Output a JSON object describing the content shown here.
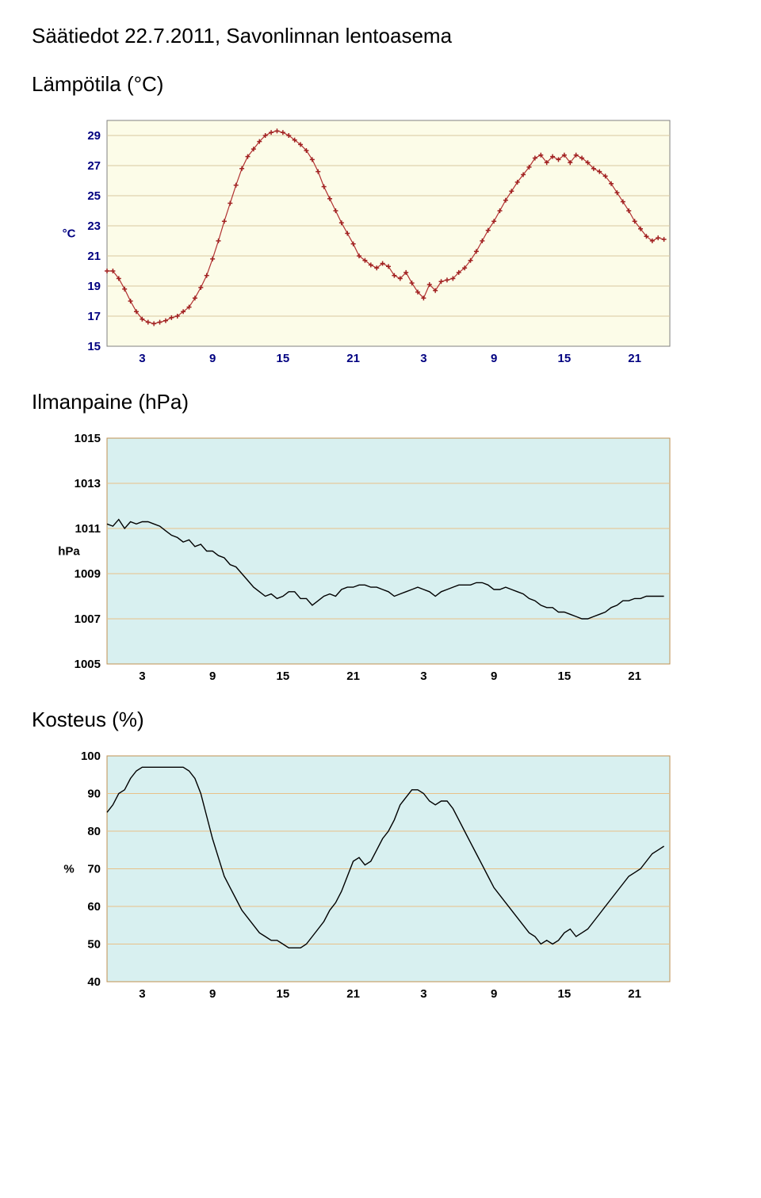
{
  "page_title": "Säätiedot 22.7.2011, Savonlinnan lentoasema",
  "charts": {
    "temperature": {
      "section_label": "Lämpötila (°C)",
      "type": "line",
      "background_color": "#fcfce8",
      "grid_color": "#d8c8a0",
      "border_color": "#808080",
      "line_color": "#b03030",
      "marker_color": "#a02020",
      "axis_font_size": 15,
      "axis_font_weight": "bold",
      "axis_color": "#000080",
      "y_axis_label": "°C",
      "ylim": [
        15,
        30
      ],
      "yticks": [
        15,
        17,
        19,
        21,
        23,
        25,
        27,
        29
      ],
      "xticks": [
        3,
        9,
        15,
        21,
        27,
        33,
        39,
        45
      ],
      "xtick_labels": [
        "3",
        "9",
        "15",
        "21",
        "3",
        "9",
        "15",
        "21"
      ],
      "xlim": [
        0,
        48
      ],
      "markers": true,
      "data": [
        [
          0,
          20
        ],
        [
          0.5,
          20
        ],
        [
          1,
          19.5
        ],
        [
          1.5,
          18.8
        ],
        [
          2,
          18
        ],
        [
          2.5,
          17.3
        ],
        [
          3,
          16.8
        ],
        [
          3.5,
          16.6
        ],
        [
          4,
          16.5
        ],
        [
          4.5,
          16.6
        ],
        [
          5,
          16.7
        ],
        [
          5.5,
          16.9
        ],
        [
          6,
          17
        ],
        [
          6.5,
          17.3
        ],
        [
          7,
          17.6
        ],
        [
          7.5,
          18.2
        ],
        [
          8,
          18.9
        ],
        [
          8.5,
          19.7
        ],
        [
          9,
          20.8
        ],
        [
          9.5,
          22
        ],
        [
          10,
          23.3
        ],
        [
          10.5,
          24.5
        ],
        [
          11,
          25.7
        ],
        [
          11.5,
          26.8
        ],
        [
          12,
          27.6
        ],
        [
          12.5,
          28.1
        ],
        [
          13,
          28.6
        ],
        [
          13.5,
          29
        ],
        [
          14,
          29.2
        ],
        [
          14.5,
          29.3
        ],
        [
          15,
          29.2
        ],
        [
          15.5,
          29
        ],
        [
          16,
          28.7
        ],
        [
          16.5,
          28.4
        ],
        [
          17,
          28
        ],
        [
          17.5,
          27.4
        ],
        [
          18,
          26.6
        ],
        [
          18.5,
          25.6
        ],
        [
          19,
          24.8
        ],
        [
          19.5,
          24
        ],
        [
          20,
          23.2
        ],
        [
          20.5,
          22.5
        ],
        [
          21,
          21.8
        ],
        [
          21.5,
          21
        ],
        [
          22,
          20.7
        ],
        [
          22.5,
          20.4
        ],
        [
          23,
          20.2
        ],
        [
          23.5,
          20.5
        ],
        [
          24,
          20.3
        ],
        [
          24.5,
          19.7
        ],
        [
          25,
          19.5
        ],
        [
          25.5,
          19.9
        ],
        [
          26,
          19.2
        ],
        [
          26.5,
          18.6
        ],
        [
          27,
          18.2
        ],
        [
          27.5,
          19.1
        ],
        [
          28,
          18.7
        ],
        [
          28.5,
          19.3
        ],
        [
          29,
          19.4
        ],
        [
          29.5,
          19.5
        ],
        [
          30,
          19.9
        ],
        [
          30.5,
          20.2
        ],
        [
          31,
          20.7
        ],
        [
          31.5,
          21.3
        ],
        [
          32,
          22
        ],
        [
          32.5,
          22.7
        ],
        [
          33,
          23.3
        ],
        [
          33.5,
          24
        ],
        [
          34,
          24.7
        ],
        [
          34.5,
          25.3
        ],
        [
          35,
          25.9
        ],
        [
          35.5,
          26.4
        ],
        [
          36,
          26.9
        ],
        [
          36.5,
          27.5
        ],
        [
          37,
          27.7
        ],
        [
          37.5,
          27.2
        ],
        [
          38,
          27.6
        ],
        [
          38.5,
          27.4
        ],
        [
          39,
          27.7
        ],
        [
          39.5,
          27.2
        ],
        [
          40,
          27.7
        ],
        [
          40.5,
          27.5
        ],
        [
          41,
          27.2
        ],
        [
          41.5,
          26.8
        ],
        [
          42,
          26.6
        ],
        [
          42.5,
          26.3
        ],
        [
          43,
          25.8
        ],
        [
          43.5,
          25.2
        ],
        [
          44,
          24.6
        ],
        [
          44.5,
          24
        ],
        [
          45,
          23.3
        ],
        [
          45.5,
          22.8
        ],
        [
          46,
          22.3
        ],
        [
          46.5,
          22
        ],
        [
          47,
          22.2
        ],
        [
          47.5,
          22.1
        ]
      ]
    },
    "pressure": {
      "section_label": "Ilmanpaine (hPa)",
      "type": "line",
      "background_color": "#d8f0f0",
      "grid_color": "#e8c088",
      "border_color": "#c09050",
      "line_color": "#000000",
      "axis_font_size": 15,
      "axis_font_weight": "bold",
      "axis_color": "#000000",
      "y_axis_label": "hPa",
      "ylim": [
        1005,
        1015
      ],
      "yticks": [
        1005,
        1007,
        1009,
        1011,
        1013,
        1015
      ],
      "xticks": [
        3,
        9,
        15,
        21,
        27,
        33,
        39,
        45
      ],
      "xtick_labels": [
        "3",
        "9",
        "15",
        "21",
        "3",
        "9",
        "15",
        "21"
      ],
      "xlim": [
        0,
        48
      ],
      "markers": false,
      "data": [
        [
          0,
          1011.2
        ],
        [
          0.5,
          1011.1
        ],
        [
          1,
          1011.4
        ],
        [
          1.5,
          1011.0
        ],
        [
          2,
          1011.3
        ],
        [
          2.5,
          1011.2
        ],
        [
          3,
          1011.3
        ],
        [
          3.5,
          1011.3
        ],
        [
          4,
          1011.2
        ],
        [
          4.5,
          1011.1
        ],
        [
          5,
          1010.9
        ],
        [
          5.5,
          1010.7
        ],
        [
          6,
          1010.6
        ],
        [
          6.5,
          1010.4
        ],
        [
          7,
          1010.5
        ],
        [
          7.5,
          1010.2
        ],
        [
          8,
          1010.3
        ],
        [
          8.5,
          1010.0
        ],
        [
          9,
          1010.0
        ],
        [
          9.5,
          1009.8
        ],
        [
          10,
          1009.7
        ],
        [
          10.5,
          1009.4
        ],
        [
          11,
          1009.3
        ],
        [
          11.5,
          1009.0
        ],
        [
          12,
          1008.7
        ],
        [
          12.5,
          1008.4
        ],
        [
          13,
          1008.2
        ],
        [
          13.5,
          1008.0
        ],
        [
          14,
          1008.1
        ],
        [
          14.5,
          1007.9
        ],
        [
          15,
          1008.0
        ],
        [
          15.5,
          1008.2
        ],
        [
          16,
          1008.2
        ],
        [
          16.5,
          1007.9
        ],
        [
          17,
          1007.9
        ],
        [
          17.5,
          1007.6
        ],
        [
          18,
          1007.8
        ],
        [
          18.5,
          1008.0
        ],
        [
          19,
          1008.1
        ],
        [
          19.5,
          1008.0
        ],
        [
          20,
          1008.3
        ],
        [
          20.5,
          1008.4
        ],
        [
          21,
          1008.4
        ],
        [
          21.5,
          1008.5
        ],
        [
          22,
          1008.5
        ],
        [
          22.5,
          1008.4
        ],
        [
          23,
          1008.4
        ],
        [
          23.5,
          1008.3
        ],
        [
          24,
          1008.2
        ],
        [
          24.5,
          1008.0
        ],
        [
          25,
          1008.1
        ],
        [
          25.5,
          1008.2
        ],
        [
          26,
          1008.3
        ],
        [
          26.5,
          1008.4
        ],
        [
          27,
          1008.3
        ],
        [
          27.5,
          1008.2
        ],
        [
          28,
          1008.0
        ],
        [
          28.5,
          1008.2
        ],
        [
          29,
          1008.3
        ],
        [
          29.5,
          1008.4
        ],
        [
          30,
          1008.5
        ],
        [
          30.5,
          1008.5
        ],
        [
          31,
          1008.5
        ],
        [
          31.5,
          1008.6
        ],
        [
          32,
          1008.6
        ],
        [
          32.5,
          1008.5
        ],
        [
          33,
          1008.3
        ],
        [
          33.5,
          1008.3
        ],
        [
          34,
          1008.4
        ],
        [
          34.5,
          1008.3
        ],
        [
          35,
          1008.2
        ],
        [
          35.5,
          1008.1
        ],
        [
          36,
          1007.9
        ],
        [
          36.5,
          1007.8
        ],
        [
          37,
          1007.6
        ],
        [
          37.5,
          1007.5
        ],
        [
          38,
          1007.5
        ],
        [
          38.5,
          1007.3
        ],
        [
          39,
          1007.3
        ],
        [
          39.5,
          1007.2
        ],
        [
          40,
          1007.1
        ],
        [
          40.5,
          1007.0
        ],
        [
          41,
          1007.0
        ],
        [
          41.5,
          1007.1
        ],
        [
          42,
          1007.2
        ],
        [
          42.5,
          1007.3
        ],
        [
          43,
          1007.5
        ],
        [
          43.5,
          1007.6
        ],
        [
          44,
          1007.8
        ],
        [
          44.5,
          1007.8
        ],
        [
          45,
          1007.9
        ],
        [
          45.5,
          1007.9
        ],
        [
          46,
          1008.0
        ],
        [
          46.5,
          1008.0
        ],
        [
          47,
          1008.0
        ],
        [
          47.5,
          1008.0
        ]
      ]
    },
    "humidity": {
      "section_label": "Kosteus (%)",
      "type": "line",
      "background_color": "#d8f0f0",
      "grid_color": "#e8c088",
      "border_color": "#c09050",
      "line_color": "#000000",
      "axis_font_size": 15,
      "axis_font_weight": "bold",
      "axis_color": "#000000",
      "y_axis_label": "%",
      "ylim": [
        40,
        100
      ],
      "yticks": [
        40,
        50,
        60,
        70,
        80,
        90,
        100
      ],
      "xticks": [
        3,
        9,
        15,
        21,
        27,
        33,
        39,
        45
      ],
      "xtick_labels": [
        "3",
        "9",
        "15",
        "21",
        "3",
        "9",
        "15",
        "21"
      ],
      "xlim": [
        0,
        48
      ],
      "markers": false,
      "data": [
        [
          0,
          85
        ],
        [
          0.5,
          87
        ],
        [
          1,
          90
        ],
        [
          1.5,
          91
        ],
        [
          2,
          94
        ],
        [
          2.5,
          96
        ],
        [
          3,
          97
        ],
        [
          3.5,
          97
        ],
        [
          4,
          97
        ],
        [
          4.5,
          97
        ],
        [
          5,
          97
        ],
        [
          5.5,
          97
        ],
        [
          6,
          97
        ],
        [
          6.5,
          97
        ],
        [
          7,
          96
        ],
        [
          7.5,
          94
        ],
        [
          8,
          90
        ],
        [
          8.5,
          84
        ],
        [
          9,
          78
        ],
        [
          9.5,
          73
        ],
        [
          10,
          68
        ],
        [
          10.5,
          65
        ],
        [
          11,
          62
        ],
        [
          11.5,
          59
        ],
        [
          12,
          57
        ],
        [
          12.5,
          55
        ],
        [
          13,
          53
        ],
        [
          13.5,
          52
        ],
        [
          14,
          51
        ],
        [
          14.5,
          51
        ],
        [
          15,
          50
        ],
        [
          15.5,
          49
        ],
        [
          16,
          49
        ],
        [
          16.5,
          49
        ],
        [
          17,
          50
        ],
        [
          17.5,
          52
        ],
        [
          18,
          54
        ],
        [
          18.5,
          56
        ],
        [
          19,
          59
        ],
        [
          19.5,
          61
        ],
        [
          20,
          64
        ],
        [
          20.5,
          68
        ],
        [
          21,
          72
        ],
        [
          21.5,
          73
        ],
        [
          22,
          71
        ],
        [
          22.5,
          72
        ],
        [
          23,
          75
        ],
        [
          23.5,
          78
        ],
        [
          24,
          80
        ],
        [
          24.5,
          83
        ],
        [
          25,
          87
        ],
        [
          25.5,
          89
        ],
        [
          26,
          91
        ],
        [
          26.5,
          91
        ],
        [
          27,
          90
        ],
        [
          27.5,
          88
        ],
        [
          28,
          87
        ],
        [
          28.5,
          88
        ],
        [
          29,
          88
        ],
        [
          29.5,
          86
        ],
        [
          30,
          83
        ],
        [
          30.5,
          80
        ],
        [
          31,
          77
        ],
        [
          31.5,
          74
        ],
        [
          32,
          71
        ],
        [
          32.5,
          68
        ],
        [
          33,
          65
        ],
        [
          33.5,
          63
        ],
        [
          34,
          61
        ],
        [
          34.5,
          59
        ],
        [
          35,
          57
        ],
        [
          35.5,
          55
        ],
        [
          36,
          53
        ],
        [
          36.5,
          52
        ],
        [
          37,
          50
        ],
        [
          37.5,
          51
        ],
        [
          38,
          50
        ],
        [
          38.5,
          51
        ],
        [
          39,
          53
        ],
        [
          39.5,
          54
        ],
        [
          40,
          52
        ],
        [
          40.5,
          53
        ],
        [
          41,
          54
        ],
        [
          41.5,
          56
        ],
        [
          42,
          58
        ],
        [
          42.5,
          60
        ],
        [
          43,
          62
        ],
        [
          43.5,
          64
        ],
        [
          44,
          66
        ],
        [
          44.5,
          68
        ],
        [
          45,
          69
        ],
        [
          45.5,
          70
        ],
        [
          46,
          72
        ],
        [
          46.5,
          74
        ],
        [
          47,
          75
        ],
        [
          47.5,
          76
        ]
      ]
    }
  }
}
